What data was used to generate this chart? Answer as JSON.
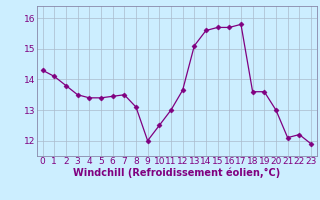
{
  "x": [
    0,
    1,
    2,
    3,
    4,
    5,
    6,
    7,
    8,
    9,
    10,
    11,
    12,
    13,
    14,
    15,
    16,
    17,
    18,
    19,
    20,
    21,
    22,
    23
  ],
  "y": [
    14.3,
    14.1,
    13.8,
    13.5,
    13.4,
    13.4,
    13.45,
    13.5,
    13.1,
    12.0,
    12.5,
    13.0,
    13.65,
    15.1,
    15.6,
    15.7,
    15.7,
    15.8,
    13.6,
    13.6,
    13.0,
    12.1,
    12.2,
    11.9
  ],
  "line_color": "#800080",
  "marker": "D",
  "marker_size": 2.5,
  "bg_color": "#cceeff",
  "grid_color": "#aabbcc",
  "ylim": [
    11.5,
    16.4
  ],
  "yticks": [
    12,
    13,
    14,
    15,
    16
  ],
  "xticks": [
    0,
    1,
    2,
    3,
    4,
    5,
    6,
    7,
    8,
    9,
    10,
    11,
    12,
    13,
    14,
    15,
    16,
    17,
    18,
    19,
    20,
    21,
    22,
    23
  ],
  "xlabel": "Windchill (Refroidissement éolien,°C)",
  "xlabel_fontsize": 7,
  "tick_fontsize": 6.5,
  "tick_color": "#800080",
  "spine_color": "#8888aa",
  "linewidth": 0.9
}
